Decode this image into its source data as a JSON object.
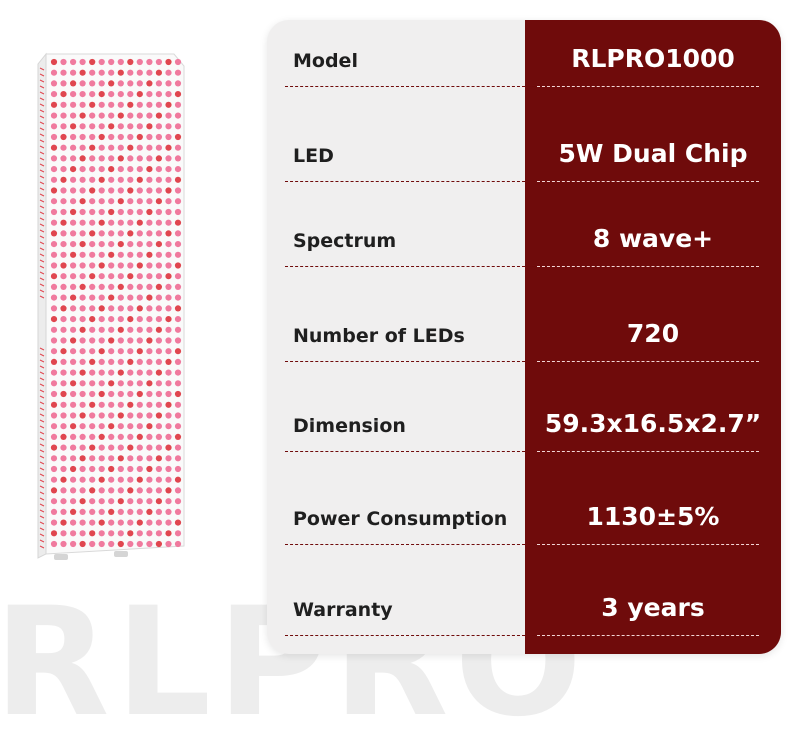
{
  "watermark": {
    "text": "RLPRO"
  },
  "product": {
    "led_grid": {
      "columns": 14,
      "rows": 46
    }
  },
  "specs": [
    {
      "label": "Model",
      "value": "RLPRO1000"
    },
    {
      "label": "LED",
      "value": "5W Dual Chip"
    },
    {
      "label": "Spectrum",
      "value": "8 wave+"
    },
    {
      "label": "Number of LEDs",
      "value": "720"
    },
    {
      "label": "Dimension",
      "value": "59.3x16.5x2.7”"
    },
    {
      "label": "Power Consumption",
      "value": "1130±5%"
    },
    {
      "label": "Warranty",
      "value": "3 years"
    }
  ],
  "colors": {
    "accent": "#6f0b0b",
    "card_background": "#f0efef",
    "led_pink": "#f07a9e",
    "led_red": "#e0464f"
  }
}
